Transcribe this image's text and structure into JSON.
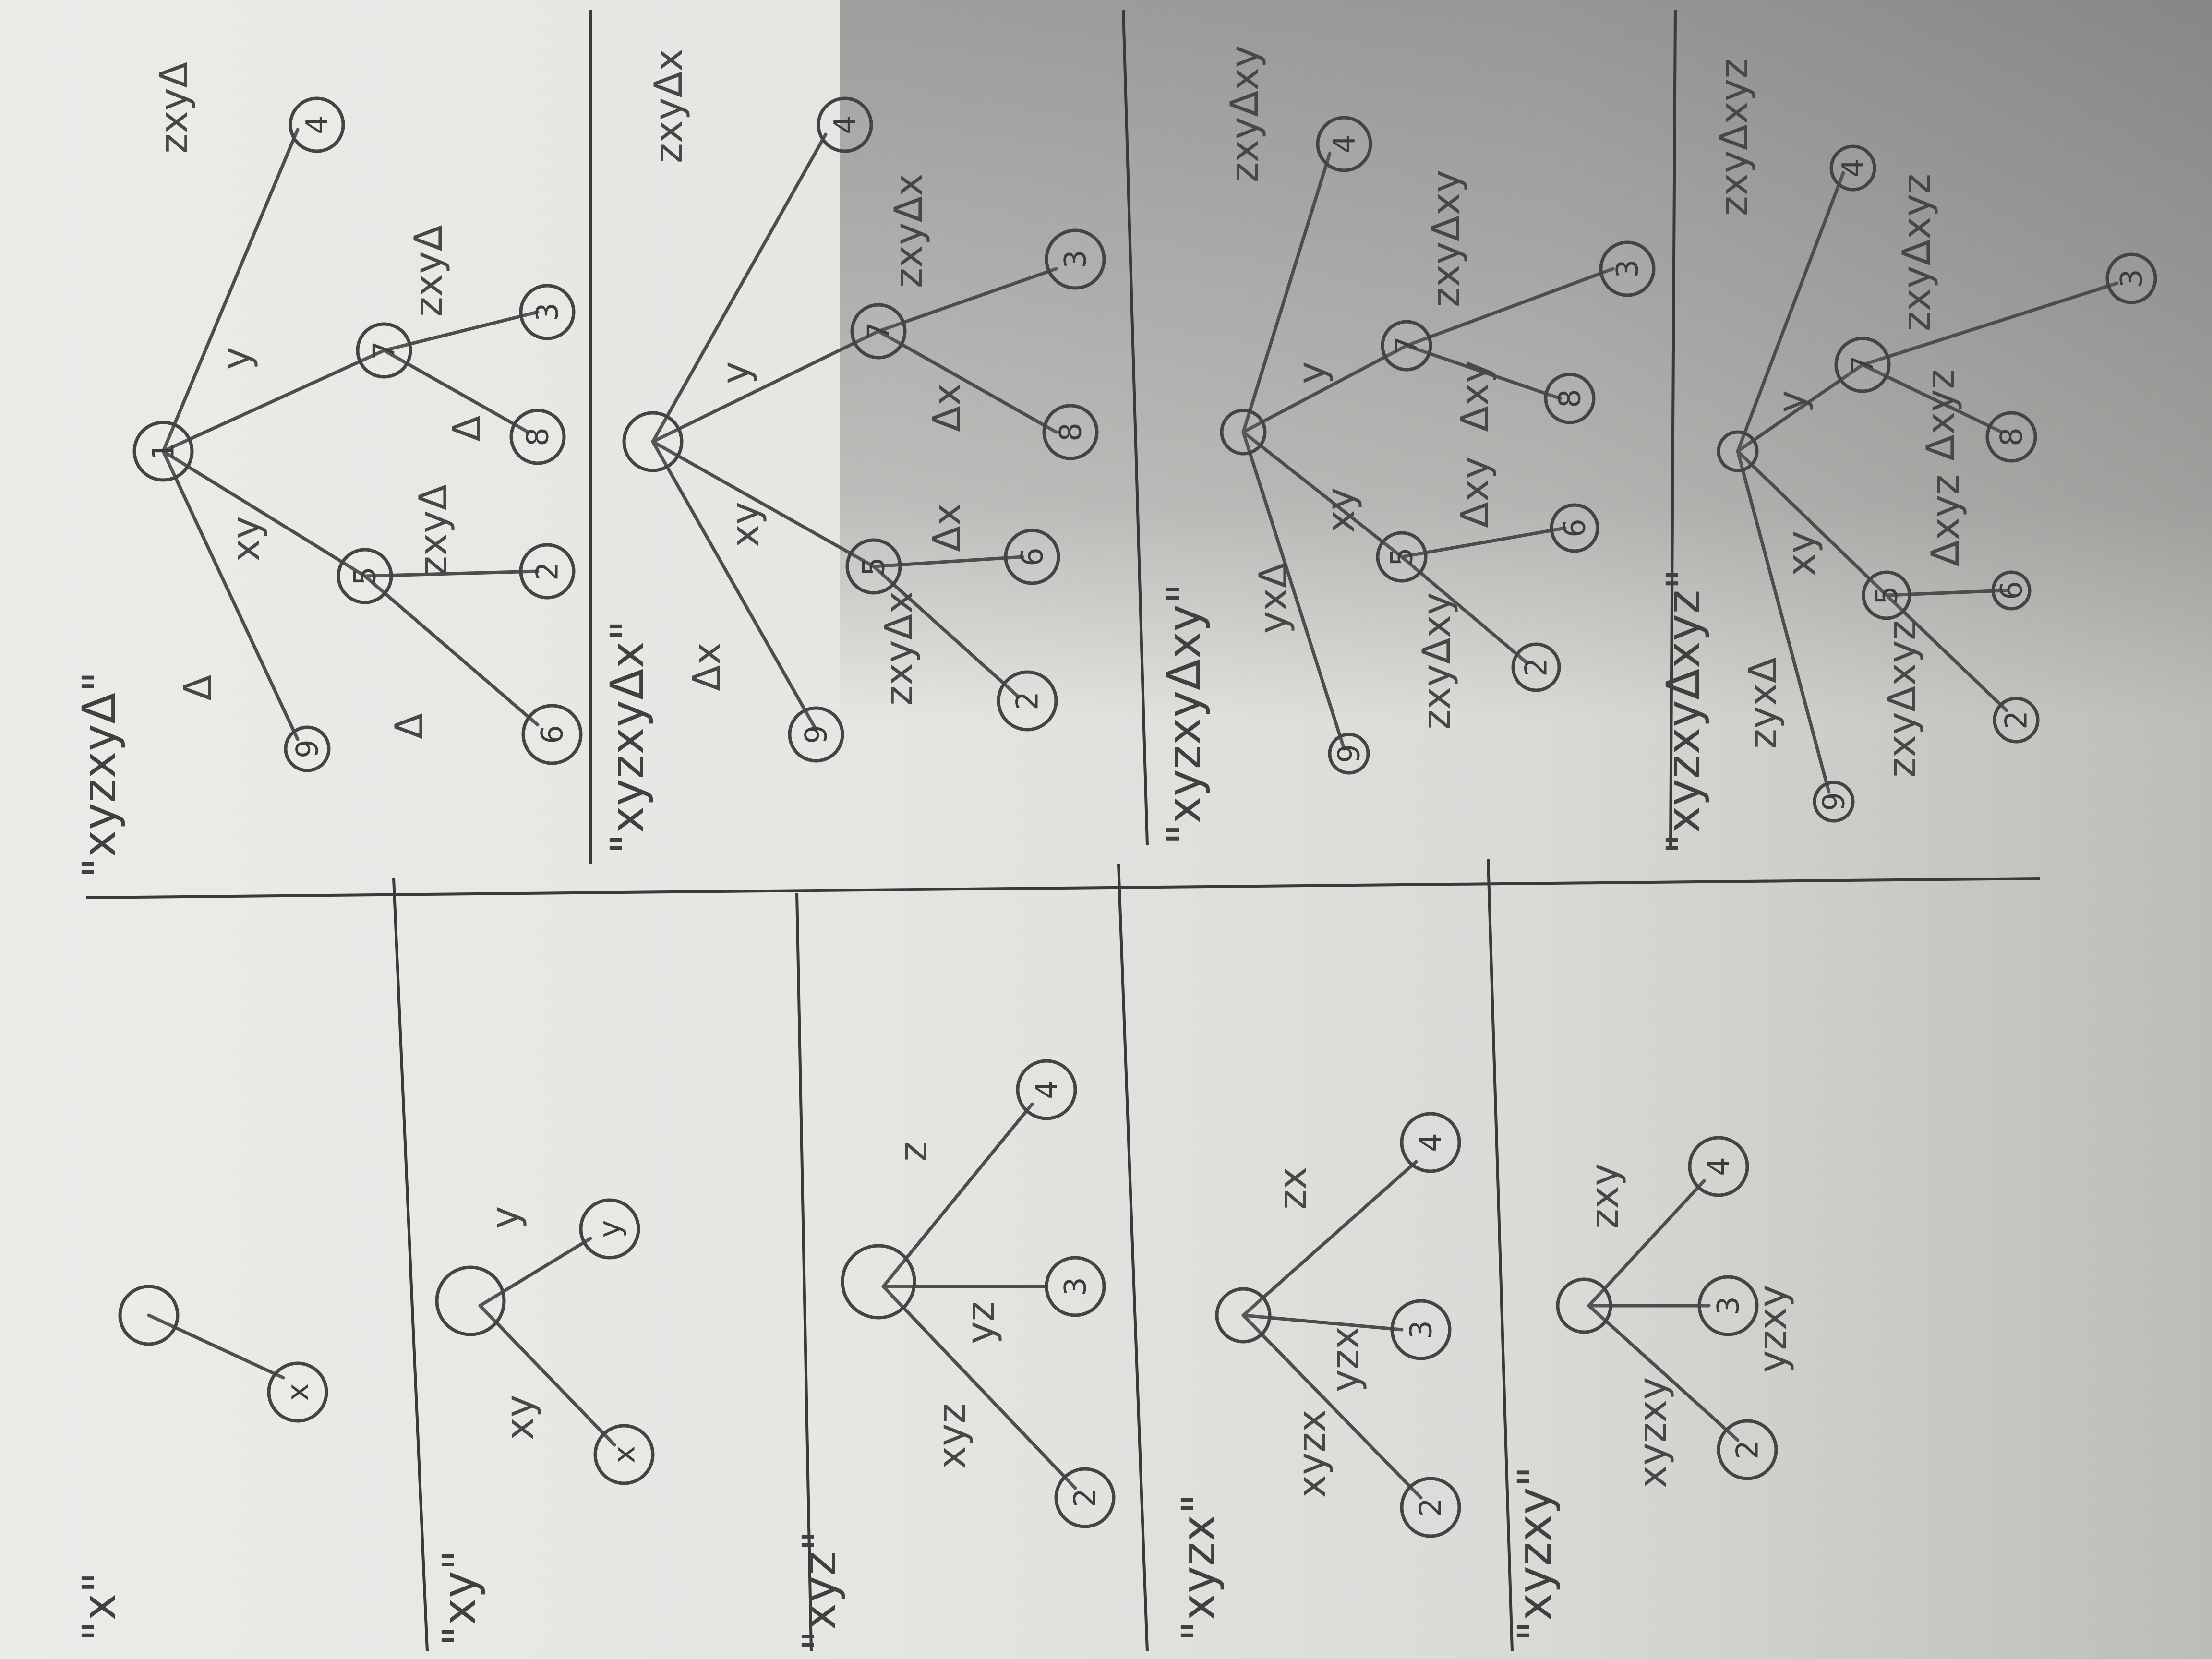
{
  "panels": [
    {
      "caption": "\"x\"",
      "nodes": [
        {
          "id": "root",
          "label": ""
        },
        {
          "id": "leaf-a",
          "label": "x"
        }
      ],
      "edges": []
    },
    {
      "caption": "\"xy\"",
      "nodes": [
        {
          "id": "root",
          "label": ""
        },
        {
          "id": "leaf-a",
          "label": "x"
        },
        {
          "id": "leaf-b",
          "label": "y"
        }
      ],
      "edges": [
        {
          "label": "xy"
        },
        {
          "label": "y"
        }
      ]
    },
    {
      "caption": "\"xyz\"",
      "nodes": [
        {
          "id": "root",
          "label": ""
        },
        {
          "id": "n2",
          "label": "2"
        },
        {
          "id": "n3",
          "label": "3"
        },
        {
          "id": "n4",
          "label": "4"
        }
      ],
      "edges": [
        {
          "label": "xyz"
        },
        {
          "label": "yz"
        },
        {
          "label": "z"
        }
      ]
    },
    {
      "caption": "\"xyzx\"",
      "nodes": [
        {
          "id": "root",
          "label": ""
        },
        {
          "id": "n2",
          "label": "2"
        },
        {
          "id": "n3",
          "label": "3"
        },
        {
          "id": "n4",
          "label": "4"
        }
      ],
      "edges": [
        {
          "label": "xyzx"
        },
        {
          "label": "yzx"
        },
        {
          "label": "zx"
        }
      ]
    },
    {
      "caption": "\"xyzxy\"",
      "nodes": [
        {
          "id": "root",
          "label": ""
        },
        {
          "id": "n2",
          "label": "2"
        },
        {
          "id": "n3",
          "label": "3"
        },
        {
          "id": "n4",
          "label": "4"
        }
      ],
      "edges": [
        {
          "label": "xyzxy"
        },
        {
          "label": "yzxy"
        },
        {
          "label": "zxy"
        }
      ]
    },
    {
      "caption": "\"xyzxyΔ\"",
      "nodes": [
        {
          "id": "root",
          "label": ""
        },
        {
          "id": "n1",
          "label": "1"
        },
        {
          "id": "n5",
          "label": "5"
        },
        {
          "id": "n7",
          "label": "7"
        },
        {
          "id": "n2",
          "label": "2"
        },
        {
          "id": "n6",
          "label": "6"
        },
        {
          "id": "n3",
          "label": "3"
        },
        {
          "id": "n8",
          "label": "8"
        },
        {
          "id": "n4",
          "label": "4"
        },
        {
          "id": "n9",
          "label": "9"
        }
      ],
      "edges": [
        {
          "label": "zxyΔ"
        },
        {
          "label": "y"
        },
        {
          "label": "xy"
        },
        {
          "label": "Δ"
        },
        {
          "label": "zxyΔ"
        },
        {
          "label": "Δ"
        },
        {
          "label": "zxyΔ"
        },
        {
          "label": "Δ"
        }
      ]
    },
    {
      "caption": "\"xyzxyΔx\"",
      "nodes": [
        {
          "id": "root",
          "label": ""
        },
        {
          "id": "n5",
          "label": "5"
        },
        {
          "id": "n7",
          "label": "7"
        },
        {
          "id": "n2",
          "label": "2"
        },
        {
          "id": "n6",
          "label": "6"
        },
        {
          "id": "n3",
          "label": "3"
        },
        {
          "id": "n8",
          "label": "8"
        },
        {
          "id": "n4",
          "label": "4"
        },
        {
          "id": "n9",
          "label": "9"
        }
      ],
      "edges": [
        {
          "label": "zxyΔx"
        },
        {
          "label": "y"
        },
        {
          "label": "xy"
        },
        {
          "label": "Δx"
        },
        {
          "label": "zxyΔx"
        },
        {
          "label": "Δx"
        },
        {
          "label": "zxyΔx"
        },
        {
          "label": "Δx"
        }
      ]
    },
    {
      "caption": "\"xyzxyΔxy\"",
      "nodes": [
        {
          "id": "root",
          "label": ""
        },
        {
          "id": "n5",
          "label": "5"
        },
        {
          "id": "n7",
          "label": "7"
        },
        {
          "id": "n2",
          "label": "2"
        },
        {
          "id": "n6",
          "label": "6"
        },
        {
          "id": "n3",
          "label": "3"
        },
        {
          "id": "n8",
          "label": "8"
        },
        {
          "id": "n4",
          "label": "4"
        },
        {
          "id": "n9",
          "label": "9"
        }
      ],
      "edges": [
        {
          "label": "zxyΔxy"
        },
        {
          "label": "y"
        },
        {
          "label": "xy"
        },
        {
          "label": "yxΔ"
        },
        {
          "label": "zxyΔxy"
        },
        {
          "label": "Δxy"
        },
        {
          "label": "zxyΔxy"
        },
        {
          "label": "Δxy"
        }
      ]
    },
    {
      "caption": "\"xyzxyΔxyz\"",
      "nodes": [
        {
          "id": "root",
          "label": ""
        },
        {
          "id": "n5",
          "label": "5"
        },
        {
          "id": "n7",
          "label": "7"
        },
        {
          "id": "n2",
          "label": "2"
        },
        {
          "id": "n6",
          "label": "6"
        },
        {
          "id": "n3",
          "label": "3"
        },
        {
          "id": "n8",
          "label": "8"
        },
        {
          "id": "n4",
          "label": "4"
        },
        {
          "id": "n9",
          "label": "9"
        }
      ],
      "edges": [
        {
          "label": "zxyΔxyz"
        },
        {
          "label": "y"
        },
        {
          "label": "xy"
        },
        {
          "label": "zyxΔ"
        },
        {
          "label": "zxyΔxyz"
        },
        {
          "label": "Δxyz"
        },
        {
          "label": "zxyΔxyz"
        },
        {
          "label": "Δxyz"
        }
      ]
    }
  ]
}
